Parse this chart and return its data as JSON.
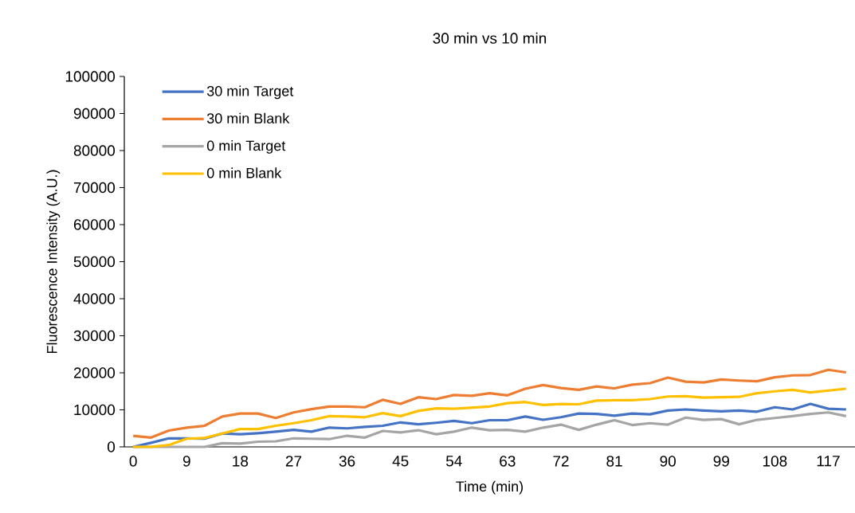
{
  "chart_data": {
    "type": "line",
    "title": "30 min vs 10 min",
    "xlabel": "Time (min)",
    "ylabel": "Fluorescence Intensity (A.U.)",
    "categories": [
      "0",
      null,
      null,
      "9",
      null,
      null,
      "18",
      null,
      null,
      "27",
      null,
      null,
      "36",
      null,
      null,
      "45",
      null,
      null,
      "54",
      null,
      null,
      "63",
      null,
      null,
      "72",
      null,
      null,
      "81",
      null,
      null,
      "90",
      null,
      null,
      "99",
      null,
      null,
      "108",
      null,
      null,
      "117",
      null
    ],
    "series": [
      {
        "name": "30 min Target",
        "color": "#4472c4",
        "values": [
          0,
          1100,
          2300,
          2300,
          2200,
          3600,
          3400,
          3700,
          4100,
          4600,
          4100,
          5200,
          5000,
          5400,
          5700,
          6600,
          6100,
          6500,
          7000,
          6400,
          7200,
          7200,
          8200,
          7300,
          8000,
          9000,
          8900,
          8400,
          9000,
          8800,
          9800,
          10100,
          9800,
          9600,
          9800,
          9500,
          10700,
          10100,
          11600,
          10300,
          10100
        ]
      },
      {
        "name": "30 min Blank",
        "color": "#ed7d31",
        "values": [
          3000,
          2500,
          4400,
          5200,
          5700,
          8200,
          9000,
          9000,
          7800,
          9300,
          10200,
          10900,
          10900,
          10700,
          12700,
          11600,
          13400,
          12900,
          14000,
          13800,
          14500,
          13900,
          15700,
          16700,
          15900,
          15400,
          16300,
          15800,
          16800,
          17200,
          18700,
          17600,
          17400,
          18200,
          17900,
          17700,
          18800,
          19300,
          19400,
          20800,
          20100
        ]
      },
      {
        "name": "0 min Target",
        "color": "#a5a5a5",
        "values": [
          0,
          0,
          0,
          0,
          0,
          1000,
          900,
          1400,
          1500,
          2300,
          2200,
          2100,
          3000,
          2500,
          4300,
          3900,
          4500,
          3400,
          4100,
          5200,
          4500,
          4600,
          4100,
          5200,
          6000,
          4600,
          6000,
          7200,
          5900,
          6400,
          6000,
          7900,
          7300,
          7500,
          6100,
          7300,
          7800,
          8300,
          8900,
          9300,
          8300
        ]
      },
      {
        "name": "0 min Blank",
        "color": "#ffc000",
        "values": [
          0,
          0,
          500,
          2200,
          2400,
          3600,
          4800,
          4800,
          5700,
          6400,
          7200,
          8300,
          8200,
          8000,
          9100,
          8300,
          9700,
          10400,
          10300,
          10600,
          10900,
          11800,
          12100,
          11300,
          11600,
          11500,
          12500,
          12600,
          12600,
          12900,
          13600,
          13700,
          13300,
          13400,
          13500,
          14500,
          15000,
          15400,
          14700,
          15200,
          15700
        ]
      }
    ],
    "ylim": [
      0,
      100000
    ],
    "yticks": [
      0,
      10000,
      20000,
      30000,
      40000,
      50000,
      60000,
      70000,
      80000,
      90000,
      100000
    ],
    "legend": "top left",
    "grid": false,
    "marker": "none",
    "line_style": "solid"
  }
}
